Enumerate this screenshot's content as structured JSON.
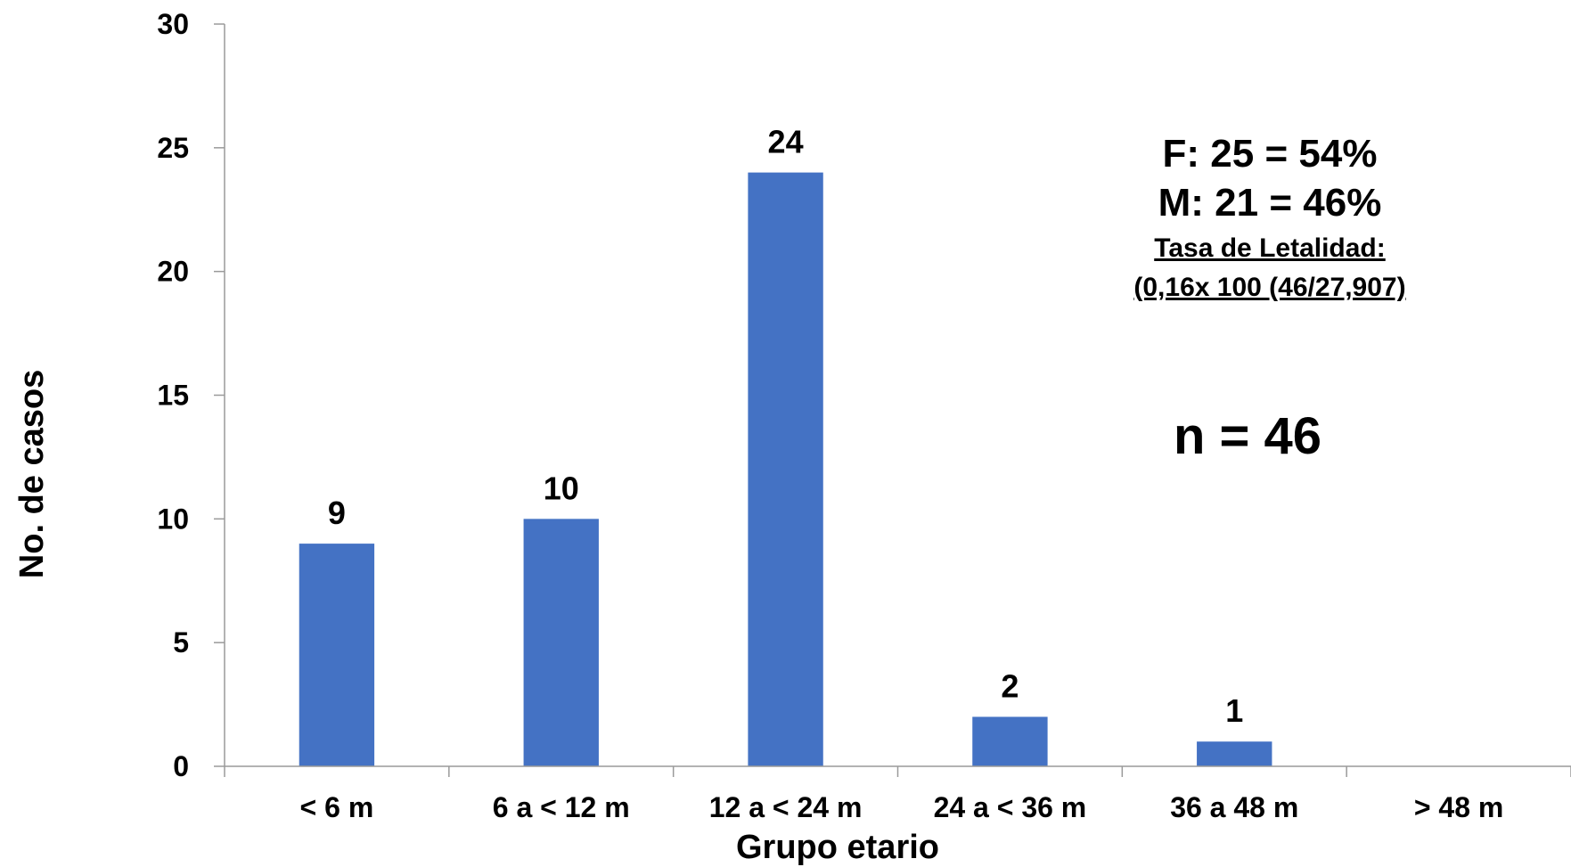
{
  "chart_data": {
    "type": "bar",
    "categories": [
      "< 6 m",
      "6 a < 12 m",
      "12 a < 24 m",
      "24 a < 36 m",
      "36 a 48 m",
      "> 48 m"
    ],
    "values": [
      9,
      10,
      24,
      2,
      1,
      null
    ],
    "data_labels": [
      "9",
      "10",
      "24",
      "2",
      "1",
      ""
    ],
    "xlabel": "Grupo etario",
    "ylabel": "No. de casos",
    "ylim": [
      0,
      30
    ],
    "yticks": [
      "0",
      "5",
      "10",
      "15",
      "20",
      "25",
      "30"
    ],
    "grid": false,
    "bar_color": "#4472C4"
  },
  "annotations": {
    "female": "F:  25 = 54%",
    "male": "M: 21 = 46%",
    "lethality_title": "Tasa de Letalidad:",
    "lethality_value": "(0,16x 100 (46/27,907)",
    "n_total": "n = 46"
  }
}
